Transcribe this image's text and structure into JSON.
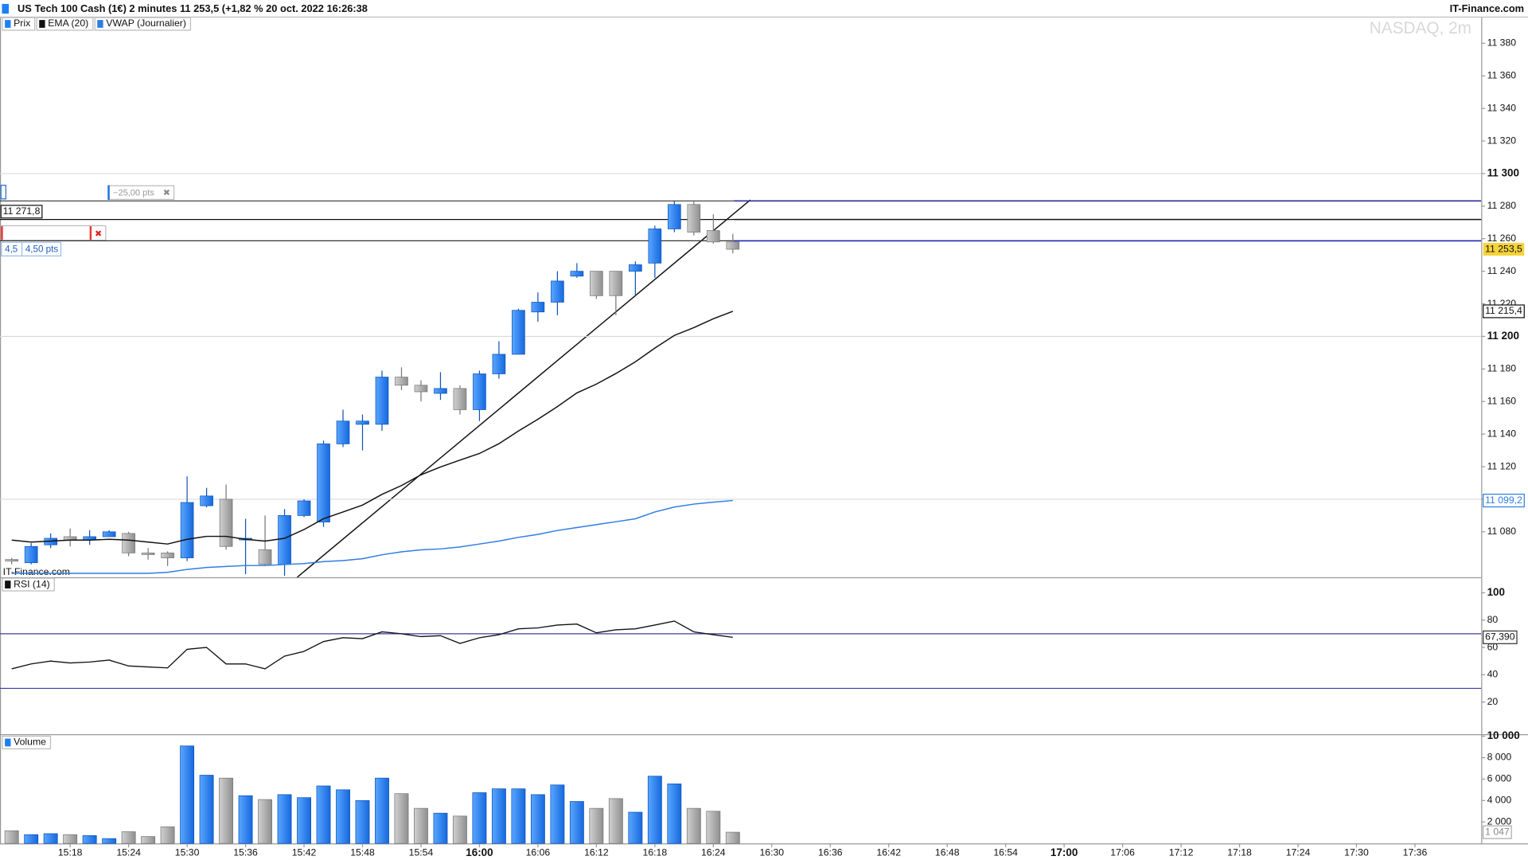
{
  "header": {
    "title": "US Tech 100 Cash (1€) 2 minutes 11 253,5 (+1,82 % 20 oct. 2022 16:26:38",
    "brand": "IT-Finance.com"
  },
  "watermark": "NASDAQ, 2m",
  "panel_brand": "IT-Finance.com",
  "tools": {
    "distance": "−25,00 pts",
    "size": "4,5",
    "size_pts": "4,50 pts"
  },
  "chart_data": [
    {
      "type": "candlestick",
      "categories": [
        "15:12",
        "15:14",
        "15:16",
        "15:18",
        "15:20",
        "15:22",
        "15:24",
        "15:26",
        "15:28",
        "15:30",
        "15:32",
        "15:34",
        "15:36",
        "15:38",
        "15:40",
        "15:42",
        "15:44",
        "15:46",
        "15:48",
        "15:50",
        "15:52",
        "15:54",
        "15:56",
        "15:58",
        "16:00",
        "16:02",
        "16:04",
        "16:06",
        "16:08",
        "16:10",
        "16:12",
        "16:14",
        "16:16",
        "16:18",
        "16:20",
        "16:22",
        "16:24",
        "16:26"
      ],
      "series": [
        {
          "name": "Prix",
          "up_color": "#1f80f4",
          "down_color": "#a8a8a8",
          "last_label": "11 253,5",
          "open": [
            11063,
            11061,
            11072,
            11077,
            11075,
            11077,
            11079,
            11067,
            11067,
            11064,
            11096,
            11100,
            11075,
            11069,
            11060,
            11090,
            11086,
            11134,
            11146,
            11146,
            11175,
            11170,
            11165,
            11168,
            11155,
            11177,
            11189,
            11215,
            11221,
            11237,
            11240,
            11240,
            11240,
            11245,
            11266,
            11281,
            11265,
            11258
          ],
          "high": [
            11064,
            11073,
            11079,
            11082,
            11081,
            11081,
            11080,
            11070,
            11068,
            11114,
            11107,
            11109,
            11088,
            11090,
            11094,
            11100,
            11136,
            11155,
            11152,
            11179,
            11181,
            11173,
            11178,
            11170,
            11179,
            11197,
            11217,
            11227,
            11240,
            11245,
            11240,
            11240,
            11246,
            11268,
            11283,
            11283,
            11275,
            11263
          ],
          "low": [
            11060,
            11060,
            11070,
            11071,
            11072,
            11077,
            11065,
            11063,
            11059,
            11062,
            11095,
            11069,
            11054,
            11059,
            11053,
            11089,
            11083,
            11132,
            11130,
            11142,
            11167,
            11160,
            11161,
            11152,
            11148,
            11174,
            11189,
            11209,
            11213,
            11236,
            11223,
            11213,
            11225,
            11236,
            11264,
            11262,
            11257,
            11251
          ],
          "close": [
            11062,
            11071,
            11076,
            11075,
            11077,
            11080,
            11067,
            11066,
            11064,
            11098,
            11102,
            11071,
            11076,
            11060,
            11090,
            11099,
            11134,
            11148,
            11148,
            11175,
            11170,
            11166,
            11168,
            11155,
            11177,
            11189,
            11216,
            11221,
            11234,
            11240,
            11225,
            11225,
            11244,
            11266,
            11281,
            11264,
            11258,
            11253.5
          ]
        },
        {
          "name": "EMA (20)",
          "color": "#111111",
          "last_label": "11 215,4",
          "values": [
            11074.9,
            11073.7,
            11074.3,
            11074.9,
            11074.9,
            11075.4,
            11074.9,
            11073.7,
            11072.5,
            11075.4,
            11077.2,
            11077.2,
            11075.4,
            11074.3,
            11076.0,
            11081.4,
            11088.0,
            11092.2,
            11096.4,
            11103.0,
            11108.4,
            11115.0,
            11119.8,
            11124.0,
            11128.1,
            11134.1,
            11141.9,
            11149.1,
            11156.9,
            11165.3,
            11170.7,
            11177.2,
            11184.4,
            11192.8,
            11200.6,
            11205.4,
            11210.8,
            11215.4
          ]
        },
        {
          "name": "VWAP (Journalier)",
          "color": "#2f7de1",
          "last_label": "11 099,2",
          "values": [
            11054.5,
            11054.5,
            11054.5,
            11054.5,
            11054.5,
            11054.5,
            11054.5,
            11054.5,
            11055.1,
            11056.9,
            11058.1,
            11058.7,
            11059.3,
            11059.3,
            11059.9,
            11060.5,
            11061.7,
            11062.3,
            11063.5,
            11065.9,
            11067.7,
            11068.9,
            11069.5,
            11070.7,
            11072.5,
            11074.3,
            11076.6,
            11078.4,
            11080.8,
            11082.6,
            11084.4,
            11086.2,
            11088.0,
            11092.2,
            11095.2,
            11097.0,
            11098.2,
            11099.2
          ]
        }
      ],
      "levels": [
        {
          "value": 11283.2,
          "color": "#333333",
          "future_color": "#2b2f9a"
        },
        {
          "value": 11271.8,
          "label": "11 271,8",
          "color": "#111111",
          "future_color": "#111111"
        },
        {
          "value": 11258.7,
          "color": "#333333",
          "future_color": "#1f24b8"
        }
      ],
      "ylim": [
        11052.1,
        11395.8
      ],
      "yticks": [
        {
          "value": 11080,
          "label": "11 080"
        },
        {
          "value": 11100,
          "label": "11 100"
        },
        {
          "value": 11120,
          "label": "11 120"
        },
        {
          "value": 11140,
          "label": "11 140"
        },
        {
          "value": 11160,
          "label": "11 160"
        },
        {
          "value": 11180,
          "label": "11 180"
        },
        {
          "value": 11200,
          "label": "11 200"
        },
        {
          "value": 11220,
          "label": "11 220"
        },
        {
          "value": 11240,
          "label": "11 240"
        },
        {
          "value": 11260,
          "label": "11 260"
        },
        {
          "value": 11280,
          "label": "11 280"
        },
        {
          "value": 11300,
          "label": "11 300"
        },
        {
          "value": 11320,
          "label": "11 320"
        },
        {
          "value": 11340,
          "label": "11 340"
        },
        {
          "value": 11360,
          "label": "11 360"
        },
        {
          "value": 11380,
          "label": "11 380"
        }
      ],
      "xticks": [
        "15:18",
        "15:24",
        "15:30",
        "15:36",
        "15:42",
        "15:48",
        "15:54",
        "16:00",
        "16:06",
        "16:12",
        "16:18",
        "16:24",
        "16:30",
        "16:36",
        "16:42",
        "16:48",
        "16:54",
        "17:00",
        "17:06",
        "17:12",
        "17:18",
        "17:24",
        "17:30",
        "17:36"
      ],
      "grid": true
    },
    {
      "type": "line",
      "series": [
        {
          "name": "RSI (14)",
          "color": "#111111",
          "last_label": "67,390",
          "values": [
            44.3,
            47.9,
            50.0,
            48.6,
            49.3,
            50.7,
            46.4,
            45.7,
            45.0,
            58.6,
            60.0,
            47.9,
            47.9,
            44.3,
            53.6,
            57.1,
            64.3,
            67.1,
            66.4,
            71.4,
            70.0,
            67.9,
            68.6,
            62.9,
            67.1,
            69.3,
            73.6,
            74.3,
            76.4,
            77.1,
            70.7,
            72.9,
            73.6,
            76.4,
            79.3,
            71.4,
            69.3,
            67.39
          ]
        }
      ],
      "levels": [
        70,
        30
      ],
      "level_color": "#3a3aa8",
      "ylim": [
        -3.6,
        110.7
      ],
      "yticks": [
        20,
        40,
        60,
        80,
        100
      ]
    },
    {
      "type": "bar",
      "series": [
        {
          "name": "Volume",
          "last_label": "1 047",
          "values": [
            1180,
            820,
            910,
            820,
            730,
            450,
            1090,
            640,
            1550,
            9090,
            6360,
            6090,
            4450,
            4090,
            4550,
            4270,
            5360,
            5000,
            4000,
            6090,
            4640,
            3270,
            2820,
            2550,
            4730,
            5090,
            5090,
            4550,
            5450,
            3910,
            3270,
            4180,
            2910,
            6270,
            5550,
            3270,
            3000,
            1047
          ]
        }
      ],
      "ylim": [
        0,
        10000
      ],
      "yticks": [
        {
          "value": 2000,
          "label": "2 000"
        },
        {
          "value": 4000,
          "label": "4 000"
        },
        {
          "value": 6000,
          "label": "6 000"
        },
        {
          "value": 8000,
          "label": "8 000"
        },
        {
          "value": 10000,
          "label": "10 000"
        }
      ]
    }
  ]
}
